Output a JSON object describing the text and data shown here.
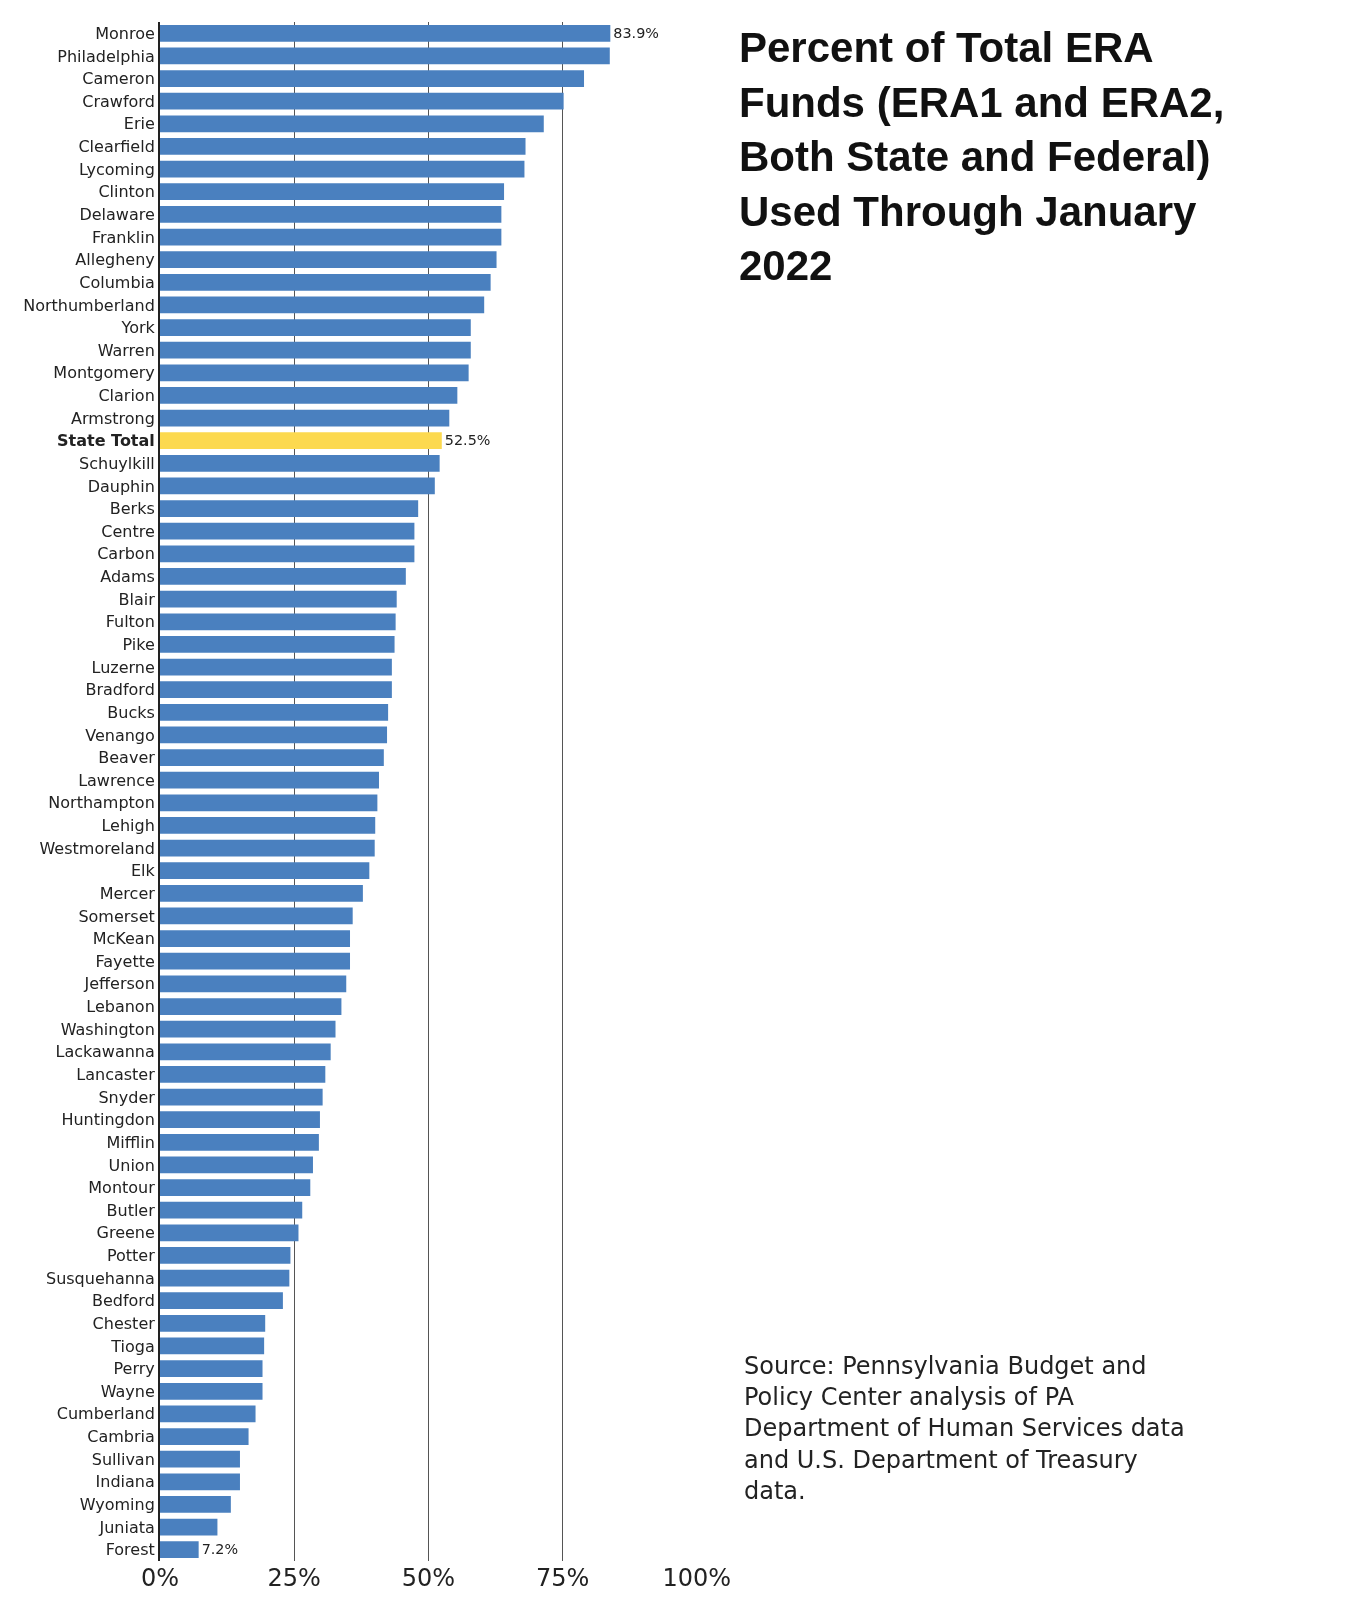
{
  "chart_data": {
    "type": "bar",
    "orientation": "horizontal",
    "title": "Percent of Total ERA Funds (ERA1 and ERA2, Both State and Federal) Used Through January 2022",
    "categories": [
      "Monroe",
      "Philadelphia",
      "Cameron",
      "Crawford",
      "Erie",
      "Clearfield",
      "Lycoming",
      "Clinton",
      "Delaware",
      "Franklin",
      "Allegheny",
      "Columbia",
      "Northumberland",
      "York",
      "Warren",
      "Montgomery",
      "Clarion",
      "Armstrong",
      "State Total",
      "Schuylkill",
      "Dauphin",
      "Berks",
      "Centre",
      "Carbon",
      "Adams",
      "Blair",
      "Fulton",
      "Pike",
      "Luzerne",
      "Bradford",
      "Bucks",
      "Venango",
      "Beaver",
      "Lawrence",
      "Northampton",
      "Lehigh",
      "Westmoreland",
      "Elk",
      "Mercer",
      "Somerset",
      "McKean",
      "Fayette",
      "Jefferson",
      "Lebanon",
      "Washington",
      "Lackawanna",
      "Lancaster",
      "Snyder",
      "Huntingdon",
      "Mifflin",
      "Union",
      "Montour",
      "Butler",
      "Greene",
      "Potter",
      "Susquehanna",
      "Bedford",
      "Chester",
      "Tioga",
      "Perry",
      "Wayne",
      "Cumberland",
      "Cambria",
      "Sullivan",
      "Indiana",
      "Wyoming",
      "Juniata",
      "Forest"
    ],
    "values": [
      83.9,
      83.8,
      79.0,
      75.2,
      71.5,
      68.1,
      67.9,
      64.1,
      63.6,
      63.6,
      62.7,
      61.6,
      60.4,
      57.9,
      57.9,
      57.5,
      55.4,
      53.9,
      52.5,
      52.1,
      51.2,
      48.1,
      47.4,
      47.4,
      45.8,
      44.1,
      43.9,
      43.7,
      43.2,
      43.2,
      42.5,
      42.3,
      41.7,
      40.8,
      40.5,
      40.1,
      40.0,
      39.0,
      37.8,
      35.9,
      35.4,
      35.4,
      34.7,
      33.8,
      32.7,
      31.8,
      30.8,
      30.3,
      29.8,
      29.6,
      28.5,
      28.0,
      26.5,
      25.8,
      24.3,
      24.1,
      22.9,
      19.6,
      19.4,
      19.1,
      19.1,
      17.8,
      16.5,
      14.9,
      14.9,
      13.2,
      10.7,
      7.2
    ],
    "colors": [
      "#4a80bf",
      "#4a80bf",
      "#4a80bf",
      "#4a80bf",
      "#4a80bf",
      "#4a80bf",
      "#4a80bf",
      "#4a80bf",
      "#4a80bf",
      "#4a80bf",
      "#4a80bf",
      "#4a80bf",
      "#4a80bf",
      "#4a80bf",
      "#4a80bf",
      "#4a80bf",
      "#4a80bf",
      "#4a80bf",
      "#fcd94f",
      "#4a80bf",
      "#4a80bf",
      "#4a80bf",
      "#4a80bf",
      "#4a80bf",
      "#4a80bf",
      "#4a80bf",
      "#4a80bf",
      "#4a80bf",
      "#4a80bf",
      "#4a80bf",
      "#4a80bf",
      "#4a80bf",
      "#4a80bf",
      "#4a80bf",
      "#4a80bf",
      "#4a80bf",
      "#4a80bf",
      "#4a80bf",
      "#4a80bf",
      "#4a80bf",
      "#4a80bf",
      "#4a80bf",
      "#4a80bf",
      "#4a80bf",
      "#4a80bf",
      "#4a80bf",
      "#4a80bf",
      "#4a80bf",
      "#4a80bf",
      "#4a80bf",
      "#4a80bf",
      "#4a80bf",
      "#4a80bf",
      "#4a80bf",
      "#4a80bf",
      "#4a80bf",
      "#4a80bf",
      "#4a80bf",
      "#4a80bf",
      "#4a80bf",
      "#4a80bf",
      "#4a80bf",
      "#4a80bf",
      "#4a80bf",
      "#4a80bf",
      "#4a80bf",
      "#4a80bf",
      "#4a80bf"
    ],
    "value_labels": [
      "83.9%",
      null,
      null,
      null,
      null,
      null,
      null,
      null,
      null,
      null,
      null,
      null,
      null,
      null,
      null,
      null,
      null,
      null,
      "52.5%",
      null,
      null,
      null,
      null,
      null,
      null,
      null,
      null,
      null,
      null,
      null,
      null,
      null,
      null,
      null,
      null,
      null,
      null,
      null,
      null,
      null,
      null,
      null,
      null,
      null,
      null,
      null,
      null,
      null,
      null,
      null,
      null,
      null,
      null,
      null,
      null,
      null,
      null,
      null,
      null,
      null,
      null,
      null,
      null,
      null,
      null,
      null,
      null,
      "7.2%"
    ],
    "xlim": [
      0,
      100
    ],
    "xticks": [
      {
        "value": 0,
        "label": "0%"
      },
      {
        "value": 25,
        "label": "25%"
      },
      {
        "value": 50,
        "label": "50%"
      },
      {
        "value": 75,
        "label": "75%"
      },
      {
        "value": 100,
        "label": "100%"
      }
    ],
    "grid": "x",
    "annotations": [
      "Source: Pennsylvania Budget and Policy Center analysis of PA Department of Human Services data and U.S. Department of Treasury data."
    ]
  }
}
